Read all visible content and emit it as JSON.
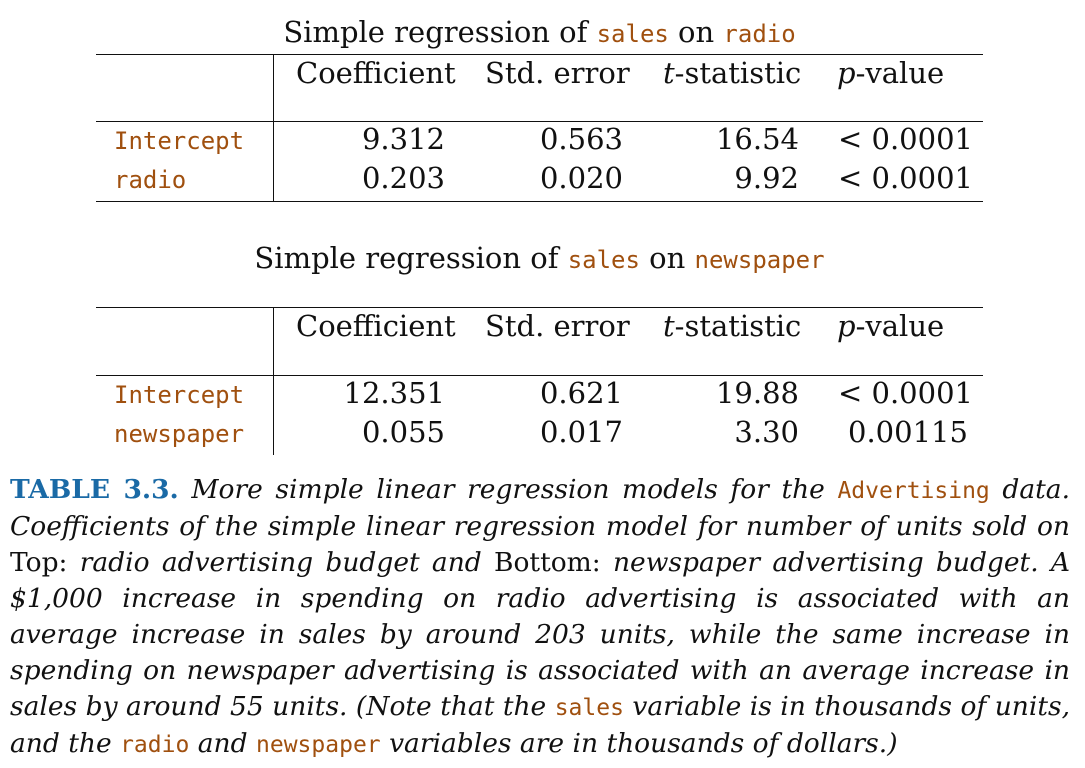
{
  "tables": [
    {
      "title": {
        "prefix": "Simple regression of ",
        "response": "sales",
        "middle": " on ",
        "predictor": "radio"
      },
      "headers": {
        "coef": "Coefficient",
        "se": "Std. error",
        "t_italic": "t",
        "t_rest": "-statistic",
        "p_italic": "p",
        "p_rest": "-value"
      },
      "rows": [
        {
          "label": "Intercept",
          "coef": "9.312",
          "se": "0.563",
          "t": "16.54",
          "p": "< 0.0001"
        },
        {
          "label": "radio",
          "coef": "0.203",
          "se": "0.020",
          "t": "9.92",
          "p": "< 0.0001"
        }
      ]
    },
    {
      "title": {
        "prefix": "Simple regression of ",
        "response": "sales",
        "middle": " on ",
        "predictor": "newspaper"
      },
      "headers": {
        "coef": "Coefficient",
        "se": "Std. error",
        "t_italic": "t",
        "t_rest": "-statistic",
        "p_italic": "p",
        "p_rest": "-value"
      },
      "rows": [
        {
          "label": "Intercept",
          "coef": "12.351",
          "se": "0.621",
          "t": "19.88",
          "p": "< 0.0001"
        },
        {
          "label": "newspaper",
          "coef": "0.055",
          "se": "0.017",
          "t": "3.30",
          "p": "0.00115"
        }
      ]
    }
  ],
  "caption": {
    "label": "TABLE 3.3.",
    "s1": " More simple linear regression models for the ",
    "code1": "Advertising",
    "s2": " data. Coefficients of the simple linear regression model for number of units sold on ",
    "top": "Top:",
    "s3": " radio advertising budget and ",
    "bottom": "Bottom:",
    "s4": " newspaper advertising budget. A $1,000 increase in spending on radio advertising is associated with an average increase in sales by around 203 units, while the same increase in spending on newspaper advertising is associated with an average increase in sales by around 55 units. (Note that the ",
    "code2": "sales",
    "s5": " variable is in thousands of units, and the ",
    "code3": "radio",
    "s6": " and ",
    "code4": "newspaper",
    "s7": " variables are in thousands of dollars.)"
  }
}
